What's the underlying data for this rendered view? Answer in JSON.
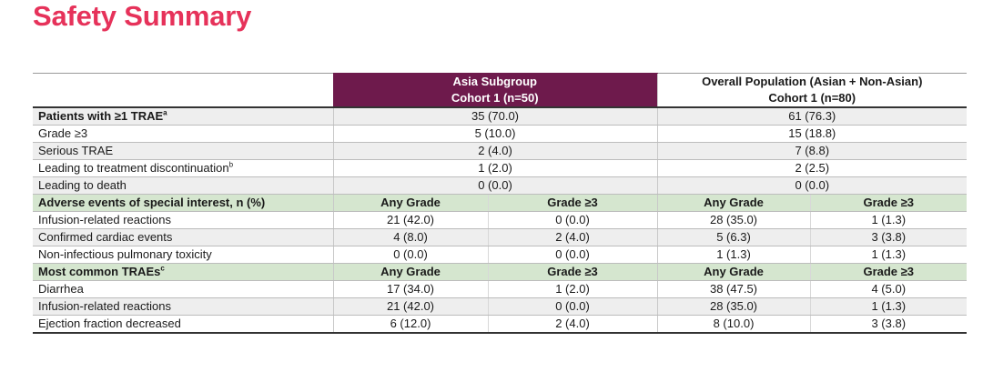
{
  "title": "Safety Summary",
  "header": {
    "asia_line1": "Asia Subgroup",
    "asia_line2": "Cohort 1 (n=50)",
    "overall_line1": "Overall Population (Asian + Non-Asian)",
    "overall_line2": "Cohort 1 (n=80)"
  },
  "trae_rows": [
    {
      "label": "Patients with ≥1 TRAE",
      "sup": "a",
      "asia": "35 (70.0)",
      "overall": "61 (76.3)"
    },
    {
      "label": "Grade ≥3",
      "sup": "",
      "asia": "5 (10.0)",
      "overall": "15 (18.8)"
    },
    {
      "label": "Serious TRAE",
      "sup": "",
      "asia": "2 (4.0)",
      "overall": "7 (8.8)"
    },
    {
      "label": "Leading to treatment discontinuation",
      "sup": "b",
      "asia": "1 (2.0)",
      "overall": "2 (2.5)"
    },
    {
      "label": "Leading to death",
      "sup": "",
      "asia": "0 (0.0)",
      "overall": "0 (0.0)"
    }
  ],
  "aesi_header": {
    "label": "Adverse events of special interest, n (%)",
    "any": "Any Grade",
    "g3": "Grade ≥3"
  },
  "aesi_rows": [
    {
      "label": "Infusion-related reactions",
      "asia_any": "21 (42.0)",
      "asia_g3": "0 (0.0)",
      "all_any": "28 (35.0)",
      "all_g3": "1 (1.3)"
    },
    {
      "label": "Confirmed cardiac events",
      "asia_any": "4 (8.0)",
      "asia_g3": "2 (4.0)",
      "all_any": "5 (6.3)",
      "all_g3": "3 (3.8)"
    },
    {
      "label": "Non-infectious pulmonary toxicity",
      "asia_any": "0 (0.0)",
      "asia_g3": "0 (0.0)",
      "all_any": "1 (1.3)",
      "all_g3": "1 (1.3)"
    }
  ],
  "common_header": {
    "label": "Most common TRAEs",
    "sup": "c",
    "any": "Any Grade",
    "g3": "Grade ≥3"
  },
  "common_rows": [
    {
      "label": "Diarrhea",
      "asia_any": "17 (34.0)",
      "asia_g3": "1 (2.0)",
      "all_any": "38 (47.5)",
      "all_g3": "4 (5.0)"
    },
    {
      "label": "Infusion-related reactions",
      "asia_any": "21 (42.0)",
      "asia_g3": "0 (0.0)",
      "all_any": "28 (35.0)",
      "all_g3": "1 (1.3)"
    },
    {
      "label": "Ejection fraction decreased",
      "asia_any": "6 (12.0)",
      "asia_g3": "2 (4.0)",
      "all_any": "8 (10.0)",
      "all_g3": "3 (3.8)"
    }
  ],
  "colors": {
    "title": "#e6325a",
    "asia_header_bg": "#6e1a4c",
    "section_bg": "#d5e6cf",
    "shade_bg": "#eeeeee"
  }
}
